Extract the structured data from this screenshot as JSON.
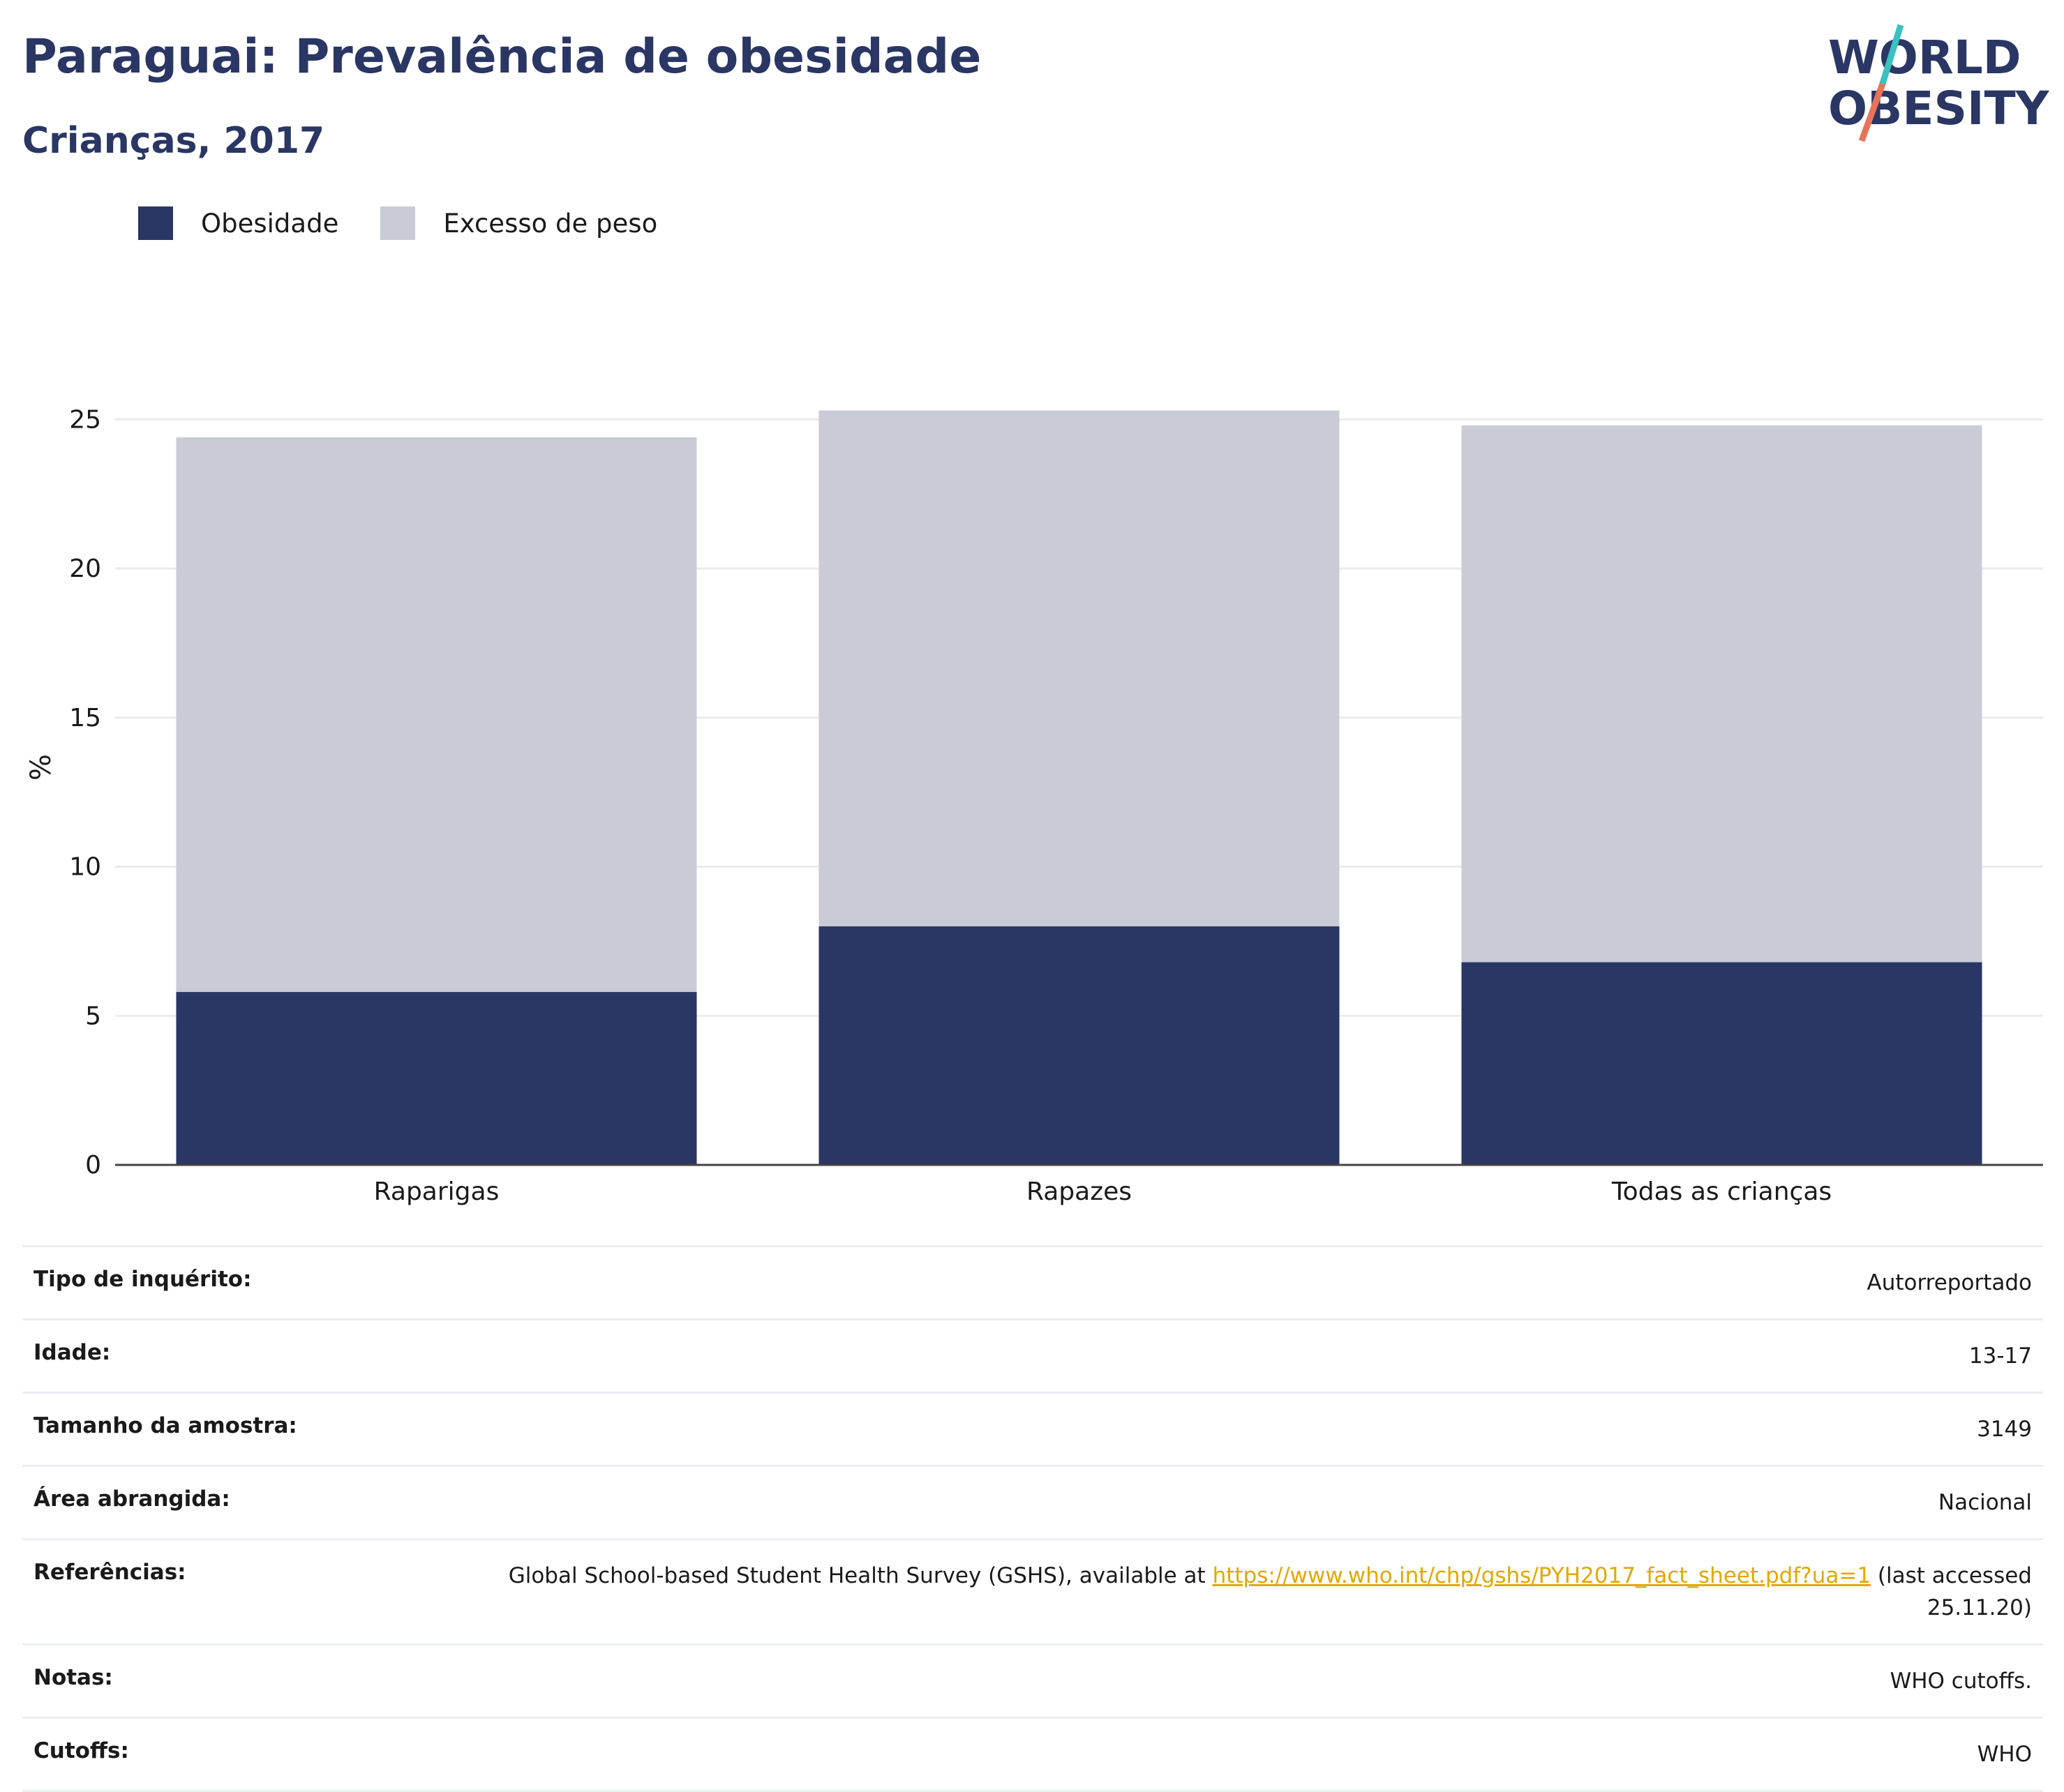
{
  "header": {
    "title": "Paraguai: Prevalência de obesidade",
    "subtitle": "Crianças, 2017"
  },
  "logo": {
    "line1": "WORLD",
    "line2": "OBESITY",
    "slash_colors": [
      "#3cc0c0",
      "#e8735a"
    ]
  },
  "colors": {
    "navy": "#2a3663",
    "light": "#c9cbd7",
    "link": "#e0a800"
  },
  "legend": [
    {
      "label": "Obesidade",
      "color": "#2a3663"
    },
    {
      "label": "Excesso de peso",
      "color": "#c9cbd7"
    }
  ],
  "chart_data": {
    "type": "bar",
    "stacked": true,
    "categories": [
      "Raparigas",
      "Rapazes",
      "Todas as crianças"
    ],
    "series": [
      {
        "name": "Obesidade",
        "values": [
          5.8,
          8.0,
          6.8
        ]
      },
      {
        "name": "Excesso de peso",
        "values": [
          18.6,
          17.3,
          18.0
        ]
      }
    ],
    "ylabel": "%",
    "ylim": [
      0,
      25
    ],
    "yticks": [
      0,
      5,
      10,
      15,
      20,
      25
    ],
    "grid": true,
    "legend_position": "top-left"
  },
  "info": [
    {
      "label": "Tipo de inquérito:",
      "value": "Autorreportado"
    },
    {
      "label": "Idade:",
      "value": "13-17"
    },
    {
      "label": "Tamanho da amostra:",
      "value": "3149"
    },
    {
      "label": "Área abrangida:",
      "value": "Nacional"
    },
    {
      "label": "Referências:",
      "value_prefix": "Global School-based Student Health Survey (GSHS), available at ",
      "link": "https://www.who.int/chp/gshs/PYH2017_fact_sheet.pdf?ua=1",
      "value_suffix": " (last accessed 25.11.20)"
    },
    {
      "label": "Notas:",
      "value": "WHO cutoffs."
    },
    {
      "label": "Cutoffs:",
      "value": "WHO"
    }
  ]
}
